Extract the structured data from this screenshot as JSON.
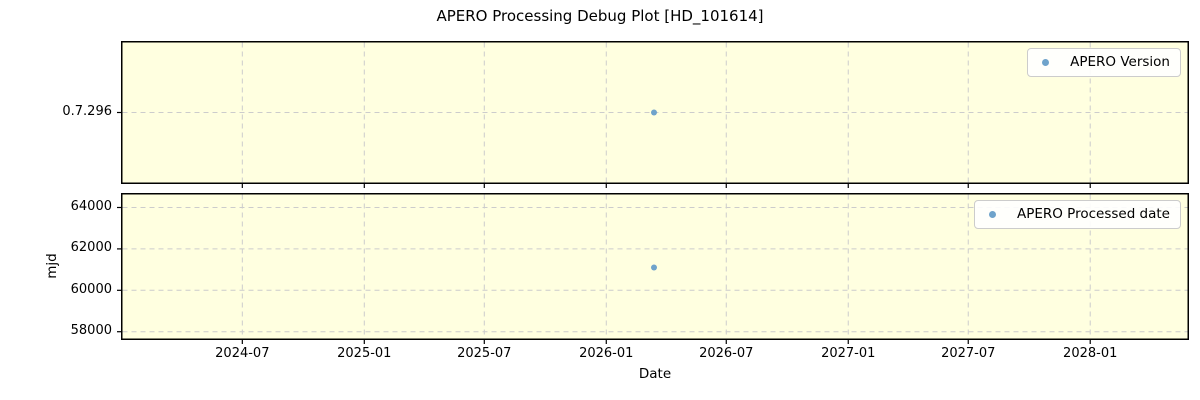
{
  "title": "APERO Processing Debug Plot [HD_101614]",
  "colors": {
    "figure_bg": "#ffffff",
    "plot_bg": "#ffffe0",
    "grid": "#cccccc",
    "spine": "#000000",
    "marker": "#6fa3cb",
    "legend_border": "#cccccc",
    "text": "#000000"
  },
  "xaxis": {
    "label": "Date",
    "lim": [
      "2023-12-31",
      "2028-05-29"
    ],
    "ticks": [
      "2024-07-01",
      "2025-01-01",
      "2025-07-01",
      "2026-01-01",
      "2026-07-01",
      "2027-01-01",
      "2027-07-01",
      "2028-01-01"
    ],
    "tick_labels": [
      "2024-07",
      "2025-01",
      "2025-07",
      "2026-01",
      "2026-07",
      "2027-01",
      "2027-07",
      "2028-01"
    ]
  },
  "chart_data": [
    {
      "type": "scatter",
      "title": "APERO Processing Debug Plot [HD_101614]",
      "xlabel": "Date",
      "ylabel": "",
      "y_type": "category",
      "y_categories": [
        "0.7.296"
      ],
      "grid": true,
      "legend_position": "upper right",
      "series": [
        {
          "name": "APERO Version",
          "x": [
            "2026-03-14"
          ],
          "y": [
            "0.7.296"
          ]
        }
      ]
    },
    {
      "type": "scatter",
      "xlabel": "Date",
      "ylabel": "mjd",
      "y_type": "linear",
      "ylim": [
        57600,
        64700
      ],
      "yticks": [
        58000,
        60000,
        62000,
        64000
      ],
      "grid": true,
      "legend_position": "upper right",
      "series": [
        {
          "name": "APERO Processed date",
          "x": [
            "2026-03-14"
          ],
          "y": [
            61100
          ]
        }
      ]
    }
  ]
}
